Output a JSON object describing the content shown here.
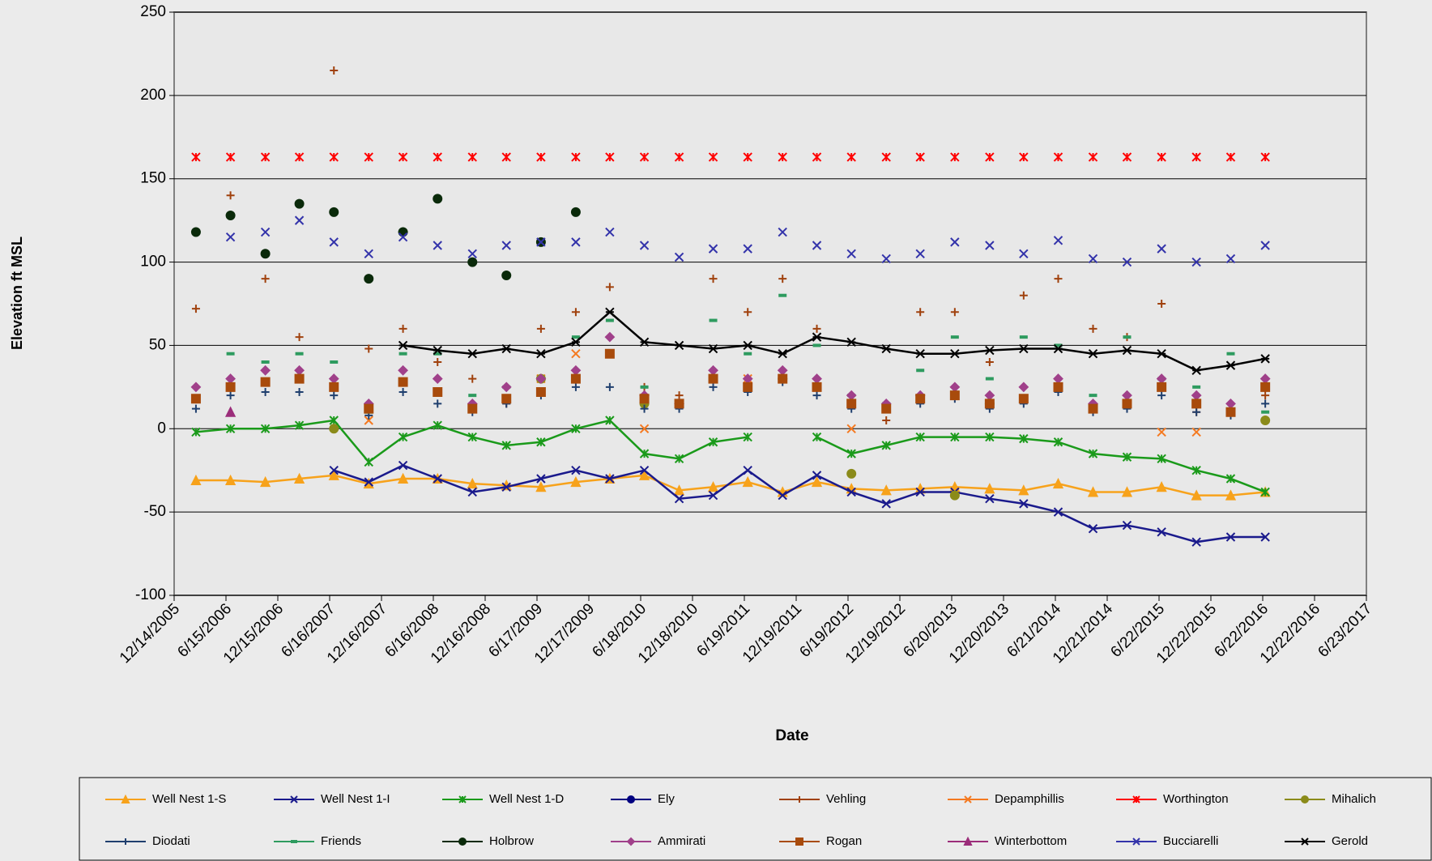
{
  "chart_data": {
    "type": "scatter",
    "ylabel": "Elevation ft MSL",
    "xlabel": "Date",
    "ylim": [
      -100,
      250
    ],
    "yticks": [
      -100,
      -50,
      0,
      50,
      100,
      150,
      200,
      250
    ],
    "grid": true,
    "xlim": [
      "12/14/2005",
      "6/23/2017"
    ],
    "xticks": [
      "12/14/2005",
      "6/15/2006",
      "12/15/2006",
      "6/16/2007",
      "12/16/2007",
      "6/16/2008",
      "12/16/2008",
      "6/17/2009",
      "12/17/2009",
      "6/18/2010",
      "12/18/2010",
      "6/19/2011",
      "12/19/2011",
      "6/19/2012",
      "12/19/2012",
      "6/20/2013",
      "12/20/2013",
      "6/21/2014",
      "12/21/2014",
      "6/22/2015",
      "12/22/2015",
      "6/22/2016",
      "12/22/2016",
      "6/23/2017"
    ],
    "legend": "bottom",
    "x": [
      "3/1/2006",
      "7/1/2006",
      "11/1/2006",
      "3/1/2007",
      "7/1/2007",
      "11/1/2007",
      "3/1/2008",
      "7/1/2008",
      "11/1/2008",
      "3/1/2009",
      "7/1/2009",
      "11/1/2009",
      "3/1/2010",
      "7/1/2010",
      "11/1/2010",
      "3/1/2011",
      "7/1/2011",
      "11/1/2011",
      "3/1/2012",
      "7/1/2012",
      "11/1/2012",
      "3/1/2013",
      "7/1/2013",
      "11/1/2013",
      "3/1/2014",
      "7/1/2014",
      "11/1/2014",
      "3/1/2015",
      "7/1/2015",
      "11/1/2015",
      "3/1/2016",
      "7/1/2016"
    ],
    "series": [
      {
        "name": "Well Nest 1-S",
        "color": "#f7a21b",
        "marker": "triangle",
        "line": true,
        "values": [
          -31,
          -31,
          -32,
          -30,
          -28,
          -33,
          -30,
          -30,
          -33,
          -34,
          -35,
          -32,
          -30,
          -28,
          -37,
          -35,
          -32,
          -38,
          -32,
          -36,
          -37,
          -36,
          -35,
          -36,
          -37,
          -33,
          -38,
          -38,
          -35,
          -40,
          -40,
          -38
        ]
      },
      {
        "name": "Well Nest 1-I",
        "color": "#1a1a8c",
        "marker": "x",
        "line": true,
        "values": [
          null,
          null,
          null,
          null,
          -25,
          -32,
          -22,
          -30,
          -38,
          -35,
          -30,
          -25,
          -30,
          -25,
          -42,
          -40,
          -25,
          -40,
          -28,
          -38,
          -45,
          -38,
          -38,
          -42,
          -45,
          -50,
          -60,
          -58,
          -62,
          -68,
          -65,
          -65
        ]
      },
      {
        "name": "Well Nest 1-D",
        "color": "#1a9a1a",
        "marker": "star",
        "line": true,
        "values": [
          -2,
          0,
          0,
          2,
          5,
          -20,
          -5,
          2,
          -5,
          -10,
          -8,
          0,
          5,
          -15,
          -18,
          -8,
          -5,
          null,
          -5,
          -15,
          -10,
          -5,
          -5,
          -5,
          -6,
          -8,
          -15,
          -17,
          -18,
          -25,
          -30,
          -38
        ]
      },
      {
        "name": "Ely",
        "color": "#000080",
        "marker": "circle",
        "line": false,
        "values": [
          null,
          null,
          null,
          null,
          null,
          null,
          null,
          null,
          null,
          null,
          null,
          null,
          null,
          null,
          null,
          null,
          null,
          null,
          null,
          null,
          null,
          null,
          null,
          null,
          null,
          null,
          null,
          null,
          null,
          null,
          null,
          null
        ]
      },
      {
        "name": "Vehling",
        "color": "#a0410d",
        "marker": "plus",
        "line": false,
        "values": [
          72,
          140,
          90,
          55,
          215,
          48,
          60,
          40,
          30,
          15,
          60,
          70,
          85,
          25,
          20,
          90,
          70,
          90,
          60,
          20,
          5,
          70,
          70,
          40,
          80,
          90,
          60,
          55,
          75,
          10,
          15,
          20
        ]
      },
      {
        "name": "Depamphillis",
        "color": "#f47920",
        "marker": "x",
        "line": false,
        "values": [
          null,
          null,
          null,
          null,
          null,
          5,
          null,
          null,
          null,
          null,
          30,
          45,
          null,
          0,
          null,
          null,
          30,
          null,
          null,
          0,
          null,
          null,
          null,
          null,
          null,
          null,
          null,
          null,
          -2,
          -2,
          null,
          null
        ]
      },
      {
        "name": "Worthington",
        "color": "#ff0000",
        "marker": "star",
        "line": false,
        "values": [
          163,
          163,
          163,
          163,
          163,
          163,
          163,
          163,
          163,
          163,
          163,
          163,
          163,
          163,
          163,
          163,
          163,
          163,
          163,
          163,
          163,
          163,
          163,
          163,
          163,
          163,
          163,
          163,
          163,
          163,
          163,
          163
        ]
      },
      {
        "name": "Mihalich",
        "color": "#8b8b1a",
        "marker": "circle",
        "line": false,
        "values": [
          null,
          null,
          null,
          null,
          0,
          null,
          null,
          null,
          null,
          null,
          30,
          null,
          null,
          15,
          null,
          null,
          null,
          30,
          null,
          -27,
          null,
          null,
          -40,
          15,
          null,
          null,
          null,
          null,
          null,
          null,
          null,
          5
        ]
      },
      {
        "name": "Diodati",
        "color": "#1f3f6e",
        "marker": "plus",
        "line": false,
        "values": [
          12,
          20,
          22,
          22,
          20,
          8,
          22,
          15,
          10,
          15,
          20,
          25,
          25,
          12,
          12,
          25,
          22,
          28,
          20,
          12,
          12,
          15,
          18,
          12,
          15,
          22,
          10,
          12,
          20,
          10,
          8,
          15
        ]
      },
      {
        "name": "Friends",
        "color": "#2e9b5f",
        "marker": "dash",
        "line": false,
        "values": [
          null,
          45,
          40,
          45,
          40,
          10,
          45,
          45,
          20,
          25,
          30,
          55,
          65,
          25,
          15,
          65,
          45,
          80,
          50,
          20,
          15,
          35,
          55,
          30,
          55,
          50,
          20,
          55,
          30,
          25,
          45,
          10
        ]
      },
      {
        "name": "Holbrow",
        "color": "#0a2a0a",
        "marker": "circle",
        "line": false,
        "values": [
          118,
          128,
          105,
          135,
          130,
          90,
          118,
          138,
          100,
          92,
          112,
          130,
          null,
          null,
          null,
          null,
          null,
          null,
          null,
          null,
          null,
          null,
          null,
          null,
          null,
          null,
          null,
          null,
          null,
          null,
          null,
          null
        ]
      },
      {
        "name": "Ammirati",
        "color": "#a0408a",
        "marker": "diamond",
        "line": false,
        "values": [
          25,
          30,
          35,
          35,
          30,
          15,
          35,
          30,
          15,
          25,
          30,
          35,
          55,
          20,
          15,
          35,
          30,
          35,
          30,
          20,
          15,
          20,
          25,
          20,
          25,
          30,
          15,
          20,
          30,
          20,
          15,
          30
        ]
      },
      {
        "name": "Rogan",
        "color": "#a84b0c",
        "marker": "square",
        "line": false,
        "values": [
          18,
          25,
          28,
          30,
          25,
          12,
          28,
          22,
          12,
          18,
          22,
          30,
          45,
          18,
          15,
          30,
          25,
          30,
          25,
          15,
          12,
          18,
          20,
          15,
          18,
          25,
          12,
          15,
          25,
          15,
          10,
          25
        ]
      },
      {
        "name": "Winterbottom",
        "color": "#9b2d7a",
        "marker": "triangle",
        "line": false,
        "values": [
          null,
          10,
          null,
          null,
          null,
          null,
          null,
          null,
          null,
          null,
          null,
          null,
          null,
          null,
          null,
          null,
          null,
          null,
          null,
          null,
          null,
          null,
          null,
          null,
          null,
          null,
          null,
          null,
          null,
          null,
          null,
          null
        ]
      },
      {
        "name": "Bucciarelli",
        "color": "#3333aa",
        "marker": "x",
        "line": false,
        "values": [
          null,
          115,
          118,
          125,
          112,
          105,
          115,
          110,
          105,
          110,
          112,
          112,
          118,
          110,
          103,
          108,
          108,
          118,
          110,
          105,
          102,
          105,
          112,
          110,
          105,
          113,
          102,
          100,
          108,
          100,
          102,
          110
        ]
      },
      {
        "name": "Gerold",
        "color": "#000000",
        "marker": "starx",
        "line": true,
        "values": [
          null,
          null,
          null,
          null,
          null,
          null,
          50,
          47,
          45,
          48,
          45,
          52,
          70,
          52,
          50,
          48,
          50,
          45,
          55,
          52,
          48,
          45,
          45,
          47,
          48,
          48,
          45,
          47,
          45,
          35,
          38,
          42
        ]
      }
    ]
  }
}
